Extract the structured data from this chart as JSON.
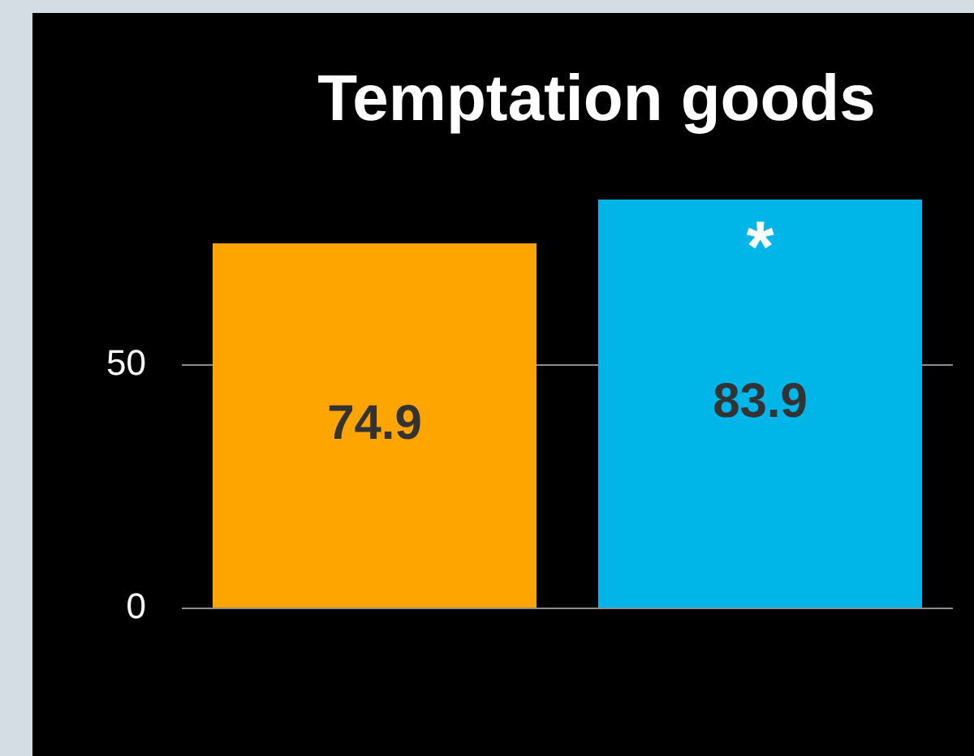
{
  "chart_data": {
    "type": "bar",
    "title": "Temptation goods",
    "categories": [
      null,
      null
    ],
    "values": [
      74.9,
      83.9
    ],
    "ylim": [
      0,
      83.9
    ],
    "colors": [
      "#ffa500",
      "#00b5e8"
    ],
    "yticks": [
      0,
      50
    ],
    "grid": "y",
    "data_labels": true,
    "tick_labels": "y",
    "annotations": [
      {
        "text": "*",
        "y": 83.9
      }
    ]
  }
}
